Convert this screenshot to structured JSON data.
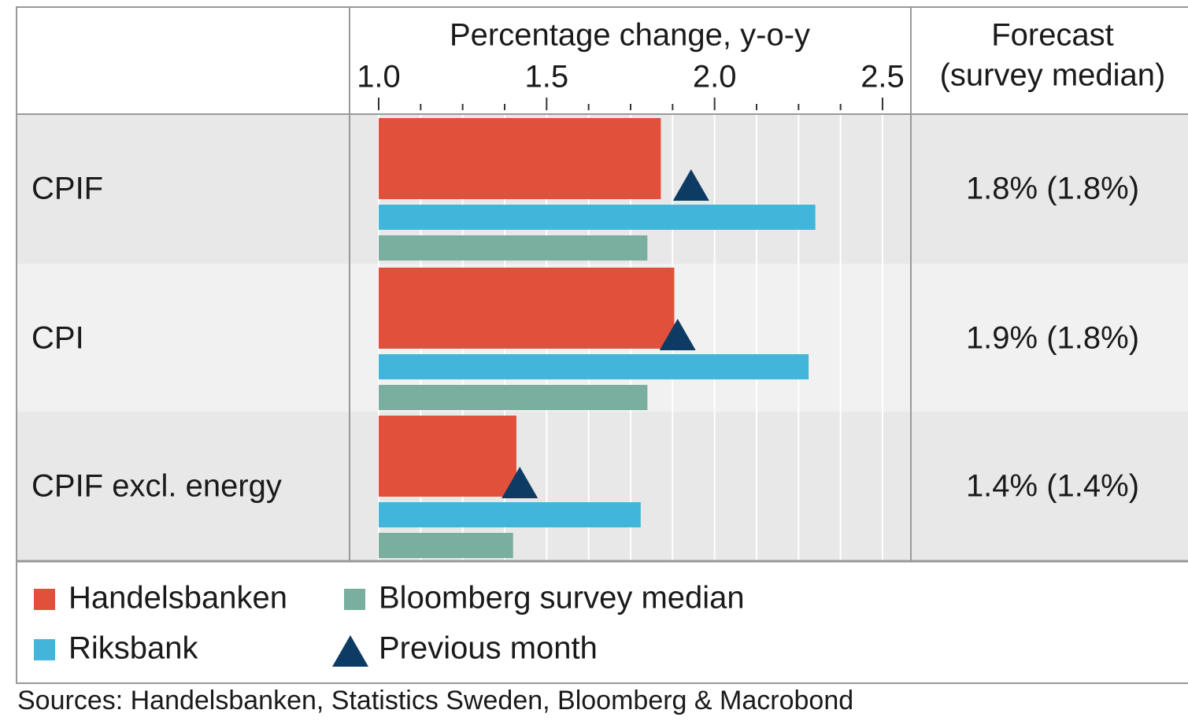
{
  "chart_data": {
    "type": "bar",
    "orientation": "horizontal",
    "x_axis_label": "Percentage change, y-o-y",
    "column_header": [
      "Forecast",
      "(survey median)"
    ],
    "categories": [
      "CPIF",
      "CPI",
      "CPIF excl. energy"
    ],
    "forecasts": [
      "1.8% (1.8%)",
      "1.9% (1.8%)",
      "1.4% (1.4%)"
    ],
    "series": [
      {
        "name": "Handelsbanken",
        "color": "#e0503b",
        "values": [
          1.84,
          1.88,
          1.41
        ]
      },
      {
        "name": "Riksbank",
        "color": "#42b6da",
        "values": [
          2.3,
          2.28,
          1.78
        ]
      },
      {
        "name": "Bloomberg survey median",
        "color": "#7aae9f",
        "values": [
          1.8,
          1.8,
          1.4
        ]
      },
      {
        "name": "Previous month",
        "color": "#0d3b63",
        "marker": "triangle",
        "values": [
          1.93,
          1.89,
          1.42
        ]
      }
    ],
    "xlim": [
      1.0,
      2.5
    ],
    "xticks": [
      {
        "value": 1.0,
        "label": "1.0"
      },
      1.5,
      {
        "value": 2.0,
        "label": "2.0"
      },
      2.5
    ],
    "minor_xticks": [
      1.125,
      1.25,
      1.375,
      1.625,
      1.75,
      1.875,
      2.125,
      2.25,
      2.375
    ],
    "grid": true,
    "source": "Sources: Handelsbanken, Statistics Sweden, Bloomberg & Macrobond"
  }
}
